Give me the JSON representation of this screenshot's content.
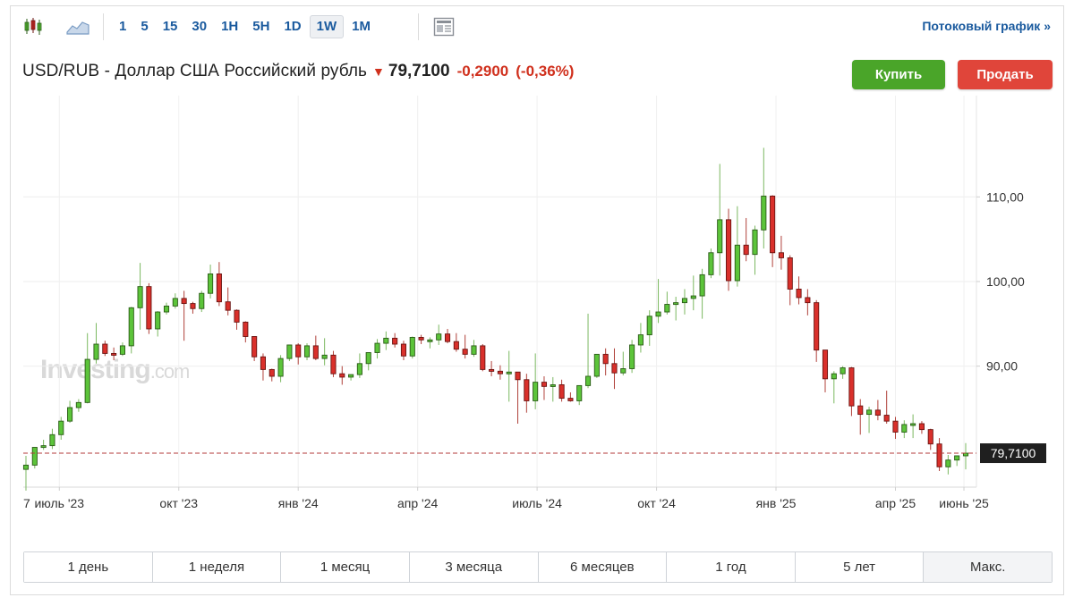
{
  "toolbar": {
    "chart_icons": [
      "candlestick-chart-icon",
      "area-chart-icon",
      "news-layout-icon"
    ],
    "intervals": [
      "1",
      "5",
      "15",
      "30",
      "1H",
      "5H",
      "1D",
      "1W",
      "1M"
    ],
    "active_interval": "1W",
    "stream_link": "Потоковый график »"
  },
  "header": {
    "title": "USD/RUB - Доллар США Российский рубль",
    "price": "79,7100",
    "change": "-0,2900",
    "change_pct": "(-0,36%)",
    "buy_label": "Купить",
    "sell_label": "Продать"
  },
  "colors": {
    "up": "#5cc43a",
    "down": "#d9302b",
    "accent": "#1a5a9e",
    "buy": "#4aa529",
    "sell": "#e0453a"
  },
  "watermark": {
    "main": "Investing",
    "suffix": ".com"
  },
  "ranges": [
    "1 день",
    "1 неделя",
    "1 месяц",
    "3 месяца",
    "6 месяцев",
    "1 год",
    "5 лет",
    "Макс."
  ],
  "active_range": "Макс.",
  "chart_data": {
    "type": "candlestick",
    "interval": "1W",
    "x_tick_labels": [
      "7",
      "июль '23",
      "окт '23",
      "янв '24",
      "апр '24",
      "июль '24",
      "окт '24",
      "янв '25",
      "апр '25",
      "июнь '25"
    ],
    "y_tick_labels": [
      "90,00",
      "100,00",
      "110,00"
    ],
    "y_ticks": [
      90,
      100,
      110
    ],
    "ylim": [
      75.7,
      120.7
    ],
    "last_price_label": "79,7100",
    "last_price": 79.71,
    "grid": true,
    "candles": [
      {
        "o": 77.8,
        "h": 79.4,
        "l": 75.3,
        "c": 78.3
      },
      {
        "o": 78.3,
        "h": 80.4,
        "l": 77.9,
        "c": 80.4
      },
      {
        "o": 80.4,
        "h": 81.3,
        "l": 80.1,
        "c": 80.6
      },
      {
        "o": 80.6,
        "h": 82.6,
        "l": 80.2,
        "c": 81.9
      },
      {
        "o": 81.9,
        "h": 84.0,
        "l": 81.3,
        "c": 83.5
      },
      {
        "o": 83.5,
        "h": 85.9,
        "l": 83.3,
        "c": 85.1
      },
      {
        "o": 85.1,
        "h": 86.1,
        "l": 84.6,
        "c": 85.7
      },
      {
        "o": 85.7,
        "h": 93.9,
        "l": 85.6,
        "c": 90.8
      },
      {
        "o": 90.8,
        "h": 95.1,
        "l": 90.3,
        "c": 92.6
      },
      {
        "o": 92.6,
        "h": 93.0,
        "l": 91.2,
        "c": 91.5
      },
      {
        "o": 91.5,
        "h": 92.2,
        "l": 90.7,
        "c": 91.4
      },
      {
        "o": 91.4,
        "h": 92.8,
        "l": 91.2,
        "c": 92.4
      },
      {
        "o": 92.4,
        "h": 97.0,
        "l": 91.5,
        "c": 96.9
      },
      {
        "o": 96.9,
        "h": 102.2,
        "l": 94.3,
        "c": 99.4
      },
      {
        "o": 99.4,
        "h": 99.8,
        "l": 93.8,
        "c": 94.4
      },
      {
        "o": 94.4,
        "h": 96.5,
        "l": 93.5,
        "c": 96.4
      },
      {
        "o": 96.4,
        "h": 97.5,
        "l": 96.1,
        "c": 97.1
      },
      {
        "o": 97.1,
        "h": 98.6,
        "l": 96.8,
        "c": 98.0
      },
      {
        "o": 98.0,
        "h": 98.9,
        "l": 93.0,
        "c": 97.4
      },
      {
        "o": 97.4,
        "h": 97.6,
        "l": 96.2,
        "c": 96.8
      },
      {
        "o": 96.8,
        "h": 98.9,
        "l": 96.4,
        "c": 98.6
      },
      {
        "o": 98.6,
        "h": 102.0,
        "l": 98.0,
        "c": 100.9
      },
      {
        "o": 100.9,
        "h": 102.3,
        "l": 97.1,
        "c": 97.6
      },
      {
        "o": 97.6,
        "h": 99.3,
        "l": 96.0,
        "c": 96.6
      },
      {
        "o": 96.6,
        "h": 96.7,
        "l": 94.3,
        "c": 95.2
      },
      {
        "o": 95.2,
        "h": 95.3,
        "l": 92.8,
        "c": 93.5
      },
      {
        "o": 93.5,
        "h": 93.5,
        "l": 90.6,
        "c": 91.1
      },
      {
        "o": 91.1,
        "h": 91.5,
        "l": 88.3,
        "c": 89.6
      },
      {
        "o": 89.6,
        "h": 89.7,
        "l": 88.2,
        "c": 88.8
      },
      {
        "o": 88.8,
        "h": 91.3,
        "l": 88.1,
        "c": 90.9
      },
      {
        "o": 90.9,
        "h": 92.5,
        "l": 90.6,
        "c": 92.5
      },
      {
        "o": 92.5,
        "h": 92.7,
        "l": 90.2,
        "c": 91.1
      },
      {
        "o": 91.1,
        "h": 92.7,
        "l": 90.7,
        "c": 92.4
      },
      {
        "o": 92.4,
        "h": 93.6,
        "l": 90.7,
        "c": 90.9
      },
      {
        "o": 90.9,
        "h": 93.3,
        "l": 90.1,
        "c": 91.3
      },
      {
        "o": 91.3,
        "h": 91.8,
        "l": 88.7,
        "c": 89.1
      },
      {
        "o": 89.1,
        "h": 90.0,
        "l": 87.8,
        "c": 88.7
      },
      {
        "o": 88.7,
        "h": 88.9,
        "l": 88.3,
        "c": 89.0
      },
      {
        "o": 89.0,
        "h": 91.5,
        "l": 88.6,
        "c": 90.3
      },
      {
        "o": 90.3,
        "h": 91.3,
        "l": 89.5,
        "c": 91.6
      },
      {
        "o": 91.6,
        "h": 93.2,
        "l": 90.9,
        "c": 92.7
      },
      {
        "o": 92.7,
        "h": 94.1,
        "l": 91.9,
        "c": 93.3
      },
      {
        "o": 93.3,
        "h": 93.9,
        "l": 92.2,
        "c": 92.6
      },
      {
        "o": 92.6,
        "h": 93.0,
        "l": 90.7,
        "c": 91.2
      },
      {
        "o": 91.2,
        "h": 93.5,
        "l": 90.9,
        "c": 93.4
      },
      {
        "o": 93.4,
        "h": 93.7,
        "l": 92.6,
        "c": 93.1
      },
      {
        "o": 93.1,
        "h": 93.4,
        "l": 92.1,
        "c": 93.1
      },
      {
        "o": 93.1,
        "h": 94.9,
        "l": 92.5,
        "c": 93.8
      },
      {
        "o": 93.8,
        "h": 94.4,
        "l": 92.7,
        "c": 92.9
      },
      {
        "o": 92.9,
        "h": 93.9,
        "l": 91.7,
        "c": 92.0
      },
      {
        "o": 92.0,
        "h": 93.7,
        "l": 90.9,
        "c": 91.4
      },
      {
        "o": 91.4,
        "h": 93.1,
        "l": 91.1,
        "c": 92.4
      },
      {
        "o": 92.4,
        "h": 92.6,
        "l": 89.4,
        "c": 89.6
      },
      {
        "o": 89.6,
        "h": 90.6,
        "l": 88.8,
        "c": 89.4
      },
      {
        "o": 89.4,
        "h": 90.1,
        "l": 88.4,
        "c": 89.1
      },
      {
        "o": 89.1,
        "h": 91.8,
        "l": 85.8,
        "c": 89.3
      },
      {
        "o": 89.3,
        "h": 89.3,
        "l": 83.2,
        "c": 88.4
      },
      {
        "o": 88.4,
        "h": 89.1,
        "l": 84.5,
        "c": 85.9
      },
      {
        "o": 85.9,
        "h": 91.5,
        "l": 84.9,
        "c": 88.1
      },
      {
        "o": 88.1,
        "h": 88.8,
        "l": 86.0,
        "c": 87.6
      },
      {
        "o": 87.6,
        "h": 88.7,
        "l": 85.8,
        "c": 87.8
      },
      {
        "o": 87.8,
        "h": 88.4,
        "l": 85.8,
        "c": 86.2
      },
      {
        "o": 86.2,
        "h": 86.9,
        "l": 85.8,
        "c": 85.9
      },
      {
        "o": 85.9,
        "h": 87.4,
        "l": 85.4,
        "c": 87.7
      },
      {
        "o": 87.7,
        "h": 96.2,
        "l": 87.4,
        "c": 88.8
      },
      {
        "o": 88.8,
        "h": 91.4,
        "l": 88.6,
        "c": 91.4
      },
      {
        "o": 91.4,
        "h": 92.1,
        "l": 88.9,
        "c": 90.3
      },
      {
        "o": 90.3,
        "h": 92.1,
        "l": 87.3,
        "c": 89.2
      },
      {
        "o": 89.2,
        "h": 91.7,
        "l": 88.9,
        "c": 89.7
      },
      {
        "o": 89.7,
        "h": 93.1,
        "l": 89.2,
        "c": 92.5
      },
      {
        "o": 92.5,
        "h": 95.1,
        "l": 91.6,
        "c": 93.7
      },
      {
        "o": 93.7,
        "h": 96.6,
        "l": 92.4,
        "c": 95.9
      },
      {
        "o": 95.9,
        "h": 100.3,
        "l": 95.1,
        "c": 96.4
      },
      {
        "o": 96.4,
        "h": 98.8,
        "l": 96.1,
        "c": 97.3
      },
      {
        "o": 97.3,
        "h": 98.2,
        "l": 95.4,
        "c": 97.5
      },
      {
        "o": 97.5,
        "h": 99.1,
        "l": 96.1,
        "c": 98.0
      },
      {
        "o": 98.0,
        "h": 100.7,
        "l": 96.6,
        "c": 98.3
      },
      {
        "o": 98.3,
        "h": 101.5,
        "l": 95.6,
        "c": 100.8
      },
      {
        "o": 100.8,
        "h": 103.9,
        "l": 100.4,
        "c": 103.4
      },
      {
        "o": 103.4,
        "h": 113.9,
        "l": 100.7,
        "c": 107.3
      },
      {
        "o": 107.3,
        "h": 108.6,
        "l": 98.9,
        "c": 100.1
      },
      {
        "o": 100.1,
        "h": 108.9,
        "l": 99.4,
        "c": 104.3
      },
      {
        "o": 104.3,
        "h": 107.5,
        "l": 102.4,
        "c": 103.2
      },
      {
        "o": 103.2,
        "h": 106.6,
        "l": 100.8,
        "c": 106.1
      },
      {
        "o": 106.1,
        "h": 115.8,
        "l": 103.9,
        "c": 110.1
      },
      {
        "o": 110.1,
        "h": 110.2,
        "l": 101.7,
        "c": 103.4
      },
      {
        "o": 103.4,
        "h": 105.4,
        "l": 101.4,
        "c": 102.8
      },
      {
        "o": 102.8,
        "h": 103.1,
        "l": 97.2,
        "c": 99.1
      },
      {
        "o": 99.1,
        "h": 100.6,
        "l": 97.3,
        "c": 98.1
      },
      {
        "o": 98.1,
        "h": 99.1,
        "l": 96.0,
        "c": 97.5
      },
      {
        "o": 97.5,
        "h": 97.8,
        "l": 90.5,
        "c": 91.9
      },
      {
        "o": 91.9,
        "h": 91.9,
        "l": 86.9,
        "c": 88.5
      },
      {
        "o": 88.5,
        "h": 89.4,
        "l": 85.6,
        "c": 89.1
      },
      {
        "o": 89.1,
        "h": 90.0,
        "l": 88.5,
        "c": 89.8
      },
      {
        "o": 89.8,
        "h": 89.9,
        "l": 84.1,
        "c": 85.3
      },
      {
        "o": 85.3,
        "h": 86.1,
        "l": 81.9,
        "c": 84.3
      },
      {
        "o": 84.3,
        "h": 85.2,
        "l": 82.1,
        "c": 84.8
      },
      {
        "o": 84.8,
        "h": 86.0,
        "l": 83.6,
        "c": 84.2
      },
      {
        "o": 84.2,
        "h": 87.1,
        "l": 83.2,
        "c": 83.5
      },
      {
        "o": 83.5,
        "h": 84.0,
        "l": 81.4,
        "c": 82.2
      },
      {
        "o": 82.2,
        "h": 83.6,
        "l": 81.5,
        "c": 83.1
      },
      {
        "o": 83.1,
        "h": 84.3,
        "l": 81.5,
        "c": 83.2
      },
      {
        "o": 83.2,
        "h": 83.5,
        "l": 82.0,
        "c": 82.5
      },
      {
        "o": 82.5,
        "h": 82.6,
        "l": 80.1,
        "c": 80.8
      },
      {
        "o": 80.8,
        "h": 81.5,
        "l": 77.6,
        "c": 78.1
      },
      {
        "o": 78.1,
        "h": 79.5,
        "l": 77.2,
        "c": 78.9
      },
      {
        "o": 78.9,
        "h": 79.4,
        "l": 78.2,
        "c": 79.4
      },
      {
        "o": 79.4,
        "h": 80.9,
        "l": 77.8,
        "c": 79.71
      }
    ]
  }
}
